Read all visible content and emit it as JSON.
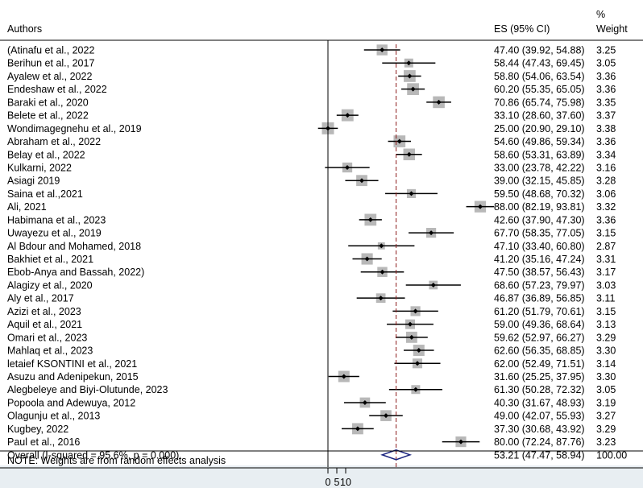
{
  "chart_data": {
    "type": "forest",
    "headers": {
      "authors": "Authors",
      "es": "ES (95% CI)",
      "weight_line1": "%",
      "weight_line2": "Weight"
    },
    "xlim": [
      0,
      10
    ],
    "x_ticks": [
      "0",
      "5",
      "10"
    ],
    "studies": [
      {
        "author": "(Atinafu et al., 2022",
        "es": 47.4,
        "lo": 39.92,
        "hi": 54.88,
        "weight": 3.25,
        "label": "47.40 (39.92, 54.88)",
        "weight_label": "3.25"
      },
      {
        "author": "Berihun et al., 2017",
        "es": 58.44,
        "lo": 47.43,
        "hi": 69.45,
        "weight": 3.05,
        "label": "58.44 (47.43, 69.45)",
        "weight_label": "3.05"
      },
      {
        "author": "Ayalew et al., 2022",
        "es": 58.8,
        "lo": 54.06,
        "hi": 63.54,
        "weight": 3.36,
        "label": "58.80 (54.06, 63.54)",
        "weight_label": "3.36"
      },
      {
        "author": "Endeshaw et al., 2022",
        "es": 60.2,
        "lo": 55.35,
        "hi": 65.05,
        "weight": 3.36,
        "label": "60.20 (55.35, 65.05)",
        "weight_label": "3.36"
      },
      {
        "author": "Baraki et al., 2020",
        "es": 70.86,
        "lo": 65.74,
        "hi": 75.98,
        "weight": 3.35,
        "label": "70.86 (65.74, 75.98)",
        "weight_label": "3.35"
      },
      {
        "author": "Belete et al., 2022",
        "es": 33.1,
        "lo": 28.6,
        "hi": 37.6,
        "weight": 3.37,
        "label": "33.10 (28.60, 37.60)",
        "weight_label": "3.37"
      },
      {
        "author": "Wondimagegnehu et al., 2019",
        "es": 25.0,
        "lo": 20.9,
        "hi": 29.1,
        "weight": 3.38,
        "label": "25.00 (20.90, 29.10)",
        "weight_label": "3.38"
      },
      {
        "author": "Abraham et al., 2022",
        "es": 54.6,
        "lo": 49.86,
        "hi": 59.34,
        "weight": 3.36,
        "label": "54.60 (49.86, 59.34)",
        "weight_label": "3.36"
      },
      {
        "author": "Belay et al., 2022",
        "es": 58.6,
        "lo": 53.31,
        "hi": 63.89,
        "weight": 3.34,
        "label": "58.60 (53.31, 63.89)",
        "weight_label": "3.34"
      },
      {
        "author": "Kulkarni, 2022",
        "es": 33.0,
        "lo": 23.78,
        "hi": 42.22,
        "weight": 3.16,
        "label": "33.00 (23.78, 42.22)",
        "weight_label": "3.16"
      },
      {
        "author": "Asiagi 2019",
        "es": 39.0,
        "lo": 32.15,
        "hi": 45.85,
        "weight": 3.28,
        "label": "39.00 (32.15, 45.85)",
        "weight_label": "3.28"
      },
      {
        "author": "Saina et al.,2021",
        "es": 59.5,
        "lo": 48.68,
        "hi": 70.32,
        "weight": 3.06,
        "label": "59.50 (48.68, 70.32)",
        "weight_label": "3.06"
      },
      {
        "author": "Ali, 2021",
        "es": 88.0,
        "lo": 82.19,
        "hi": 93.81,
        "weight": 3.32,
        "label": "88.00 (82.19, 93.81)",
        "weight_label": "3.32"
      },
      {
        "author": "Habimana et al., 2023",
        "es": 42.6,
        "lo": 37.9,
        "hi": 47.3,
        "weight": 3.36,
        "label": "42.60 (37.90, 47.30)",
        "weight_label": "3.36"
      },
      {
        "author": "Uwayezu et al., 2019",
        "es": 67.7,
        "lo": 58.35,
        "hi": 77.05,
        "weight": 3.15,
        "label": "67.70 (58.35, 77.05)",
        "weight_label": "3.15"
      },
      {
        "author": "Al Bdour and Mohamed, 2018",
        "es": 47.1,
        "lo": 33.4,
        "hi": 60.8,
        "weight": 2.87,
        "label": "47.10 (33.40, 60.80)",
        "weight_label": "2.87"
      },
      {
        "author": "Bakhiet et al., 2021",
        "es": 41.2,
        "lo": 35.16,
        "hi": 47.24,
        "weight": 3.31,
        "label": "41.20 (35.16, 47.24)",
        "weight_label": "3.31"
      },
      {
        "author": "Ebob-Anya and Bassah, 2022)",
        "es": 47.5,
        "lo": 38.57,
        "hi": 56.43,
        "weight": 3.17,
        "label": "47.50 (38.57, 56.43)",
        "weight_label": "3.17"
      },
      {
        "author": "Alagizy et al., 2020",
        "es": 68.6,
        "lo": 57.23,
        "hi": 79.97,
        "weight": 3.03,
        "label": "68.60 (57.23, 79.97)",
        "weight_label": "3.03"
      },
      {
        "author": "Aly et al., 2017",
        "es": 46.87,
        "lo": 36.89,
        "hi": 56.85,
        "weight": 3.11,
        "label": "46.87 (36.89, 56.85)",
        "weight_label": "3.11"
      },
      {
        "author": "Azizi et al., 2023",
        "es": 61.2,
        "lo": 51.79,
        "hi": 70.61,
        "weight": 3.15,
        "label": "61.20 (51.79, 70.61)",
        "weight_label": "3.15"
      },
      {
        "author": "Aquil et al., 2021",
        "es": 59.0,
        "lo": 49.36,
        "hi": 68.64,
        "weight": 3.13,
        "label": "59.00 (49.36, 68.64)",
        "weight_label": "3.13"
      },
      {
        "author": "Omari et al., 2023",
        "es": 59.62,
        "lo": 52.97,
        "hi": 66.27,
        "weight": 3.29,
        "label": "59.62 (52.97, 66.27)",
        "weight_label": "3.29"
      },
      {
        "author": "Mahlaq et al., 2023",
        "es": 62.6,
        "lo": 56.35,
        "hi": 68.85,
        "weight": 3.3,
        "label": "62.60 (56.35, 68.85)",
        "weight_label": "3.30"
      },
      {
        "author": "letaief KSONTINI et al., 2021",
        "es": 62.0,
        "lo": 52.49,
        "hi": 71.51,
        "weight": 3.14,
        "label": "62.00 (52.49, 71.51)",
        "weight_label": "3.14"
      },
      {
        "author": "Asuzu and Adenipekun, 2015",
        "es": 31.6,
        "lo": 25.25,
        "hi": 37.95,
        "weight": 3.3,
        "label": "31.60 (25.25, 37.95)",
        "weight_label": "3.30"
      },
      {
        "author": "Alegbeleye and Biyi-Olutunde, 2023",
        "es": 61.3,
        "lo": 50.28,
        "hi": 72.32,
        "weight": 3.05,
        "label": "61.30 (50.28, 72.32)",
        "weight_label": "3.05"
      },
      {
        "author": "Popoola and Adewuya, 2012",
        "es": 40.3,
        "lo": 31.67,
        "hi": 48.93,
        "weight": 3.19,
        "label": "40.30 (31.67, 48.93)",
        "weight_label": "3.19"
      },
      {
        "author": "Olagunju et al., 2013",
        "es": 49.0,
        "lo": 42.07,
        "hi": 55.93,
        "weight": 3.27,
        "label": "49.00 (42.07, 55.93)",
        "weight_label": "3.27"
      },
      {
        "author": "Kugbey, 2022",
        "es": 37.3,
        "lo": 30.68,
        "hi": 43.92,
        "weight": 3.29,
        "label": "37.30 (30.68, 43.92)",
        "weight_label": "3.29"
      },
      {
        "author": "Paul et al., 2016",
        "es": 80.0,
        "lo": 72.24,
        "hi": 87.76,
        "weight": 3.23,
        "label": "80.00 (72.24, 87.76)",
        "weight_label": "3.23"
      }
    ],
    "overall": {
      "label": "Overall  (I-squared = 95.6%, p = 0.000)",
      "es": 53.21,
      "lo": 47.47,
      "hi": 58.94,
      "weight": 100.0,
      "es_label": "53.21 (47.47, 58.94)",
      "weight_label": "100.00"
    },
    "note": "NOTE: Weights are from random effects analysis",
    "colors": {
      "marker": "#000000",
      "weight_box": "#b8b8b8",
      "reference_line": "#8b1a1a",
      "overall_diamond": "#1a237e",
      "axis_band": "#e8eef2"
    }
  }
}
